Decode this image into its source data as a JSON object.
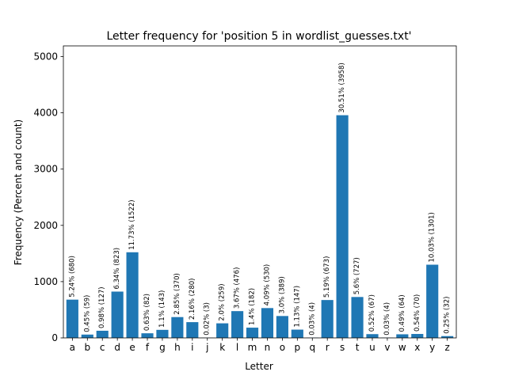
{
  "chart_data": {
    "type": "bar",
    "title": "Letter frequency for 'position 5 in wordlist_guesses.txt'",
    "xlabel": "Letter",
    "ylabel": "Frequency (Percent and count)",
    "categories": [
      "a",
      "b",
      "c",
      "d",
      "e",
      "f",
      "g",
      "h",
      "i",
      "j",
      "k",
      "l",
      "m",
      "n",
      "o",
      "p",
      "q",
      "r",
      "s",
      "t",
      "u",
      "v",
      "w",
      "x",
      "y",
      "z"
    ],
    "values": [
      680,
      59,
      127,
      823,
      1522,
      82,
      143,
      370,
      280,
      3,
      259,
      476,
      182,
      530,
      389,
      147,
      4,
      673,
      3958,
      727,
      67,
      4,
      64,
      70,
      1301,
      32
    ],
    "data_labels": [
      "5.24% (680)",
      "0.45% (59)",
      "0.98% (127)",
      "6.34% (823)",
      "11.73% (1522)",
      "0.63% (82)",
      "1.1% (143)",
      "2.85% (370)",
      "2.16% (280)",
      "0.02% (3)",
      "2.0% (259)",
      "3.67% (476)",
      "1.4% (182)",
      "4.09% (530)",
      "3.0% (389)",
      "1.13% (147)",
      "0.03% (4)",
      "5.19% (673)",
      "30.51% (3958)",
      "5.6% (727)",
      "0.52% (67)",
      "0.03% (4)",
      "0.49% (64)",
      "0.54% (70)",
      "10.03% (1301)",
      "0.25% (32)"
    ],
    "yticks": [
      0,
      1000,
      2000,
      3000,
      4000,
      5000
    ],
    "ytick_labels": [
      "0",
      "1000",
      "2000",
      "3000",
      "4000",
      "5000"
    ],
    "ylim": [
      0,
      5190
    ],
    "bar_color": "#1f77b4",
    "grid": false,
    "legend": "none"
  }
}
